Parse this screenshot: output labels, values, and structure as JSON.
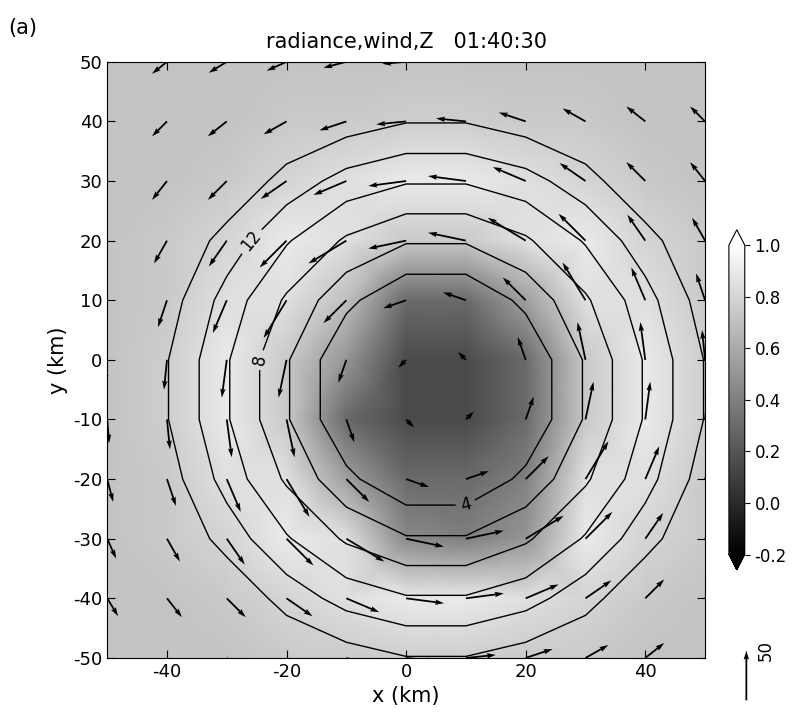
{
  "chart_data": {
    "type": "image_quiver_contour",
    "title": "radiance,wind,Z   01:40:30",
    "panel_label": "(a)",
    "x_label": "x (km)",
    "y_label": "y (km)",
    "x": [
      -50,
      -40,
      -30,
      -20,
      -10,
      0,
      10,
      20,
      30,
      40,
      50
    ],
    "y": [
      -50,
      -40,
      -30,
      -20,
      -10,
      0,
      10,
      20,
      30,
      40,
      50
    ],
    "xlim": [
      -50,
      50
    ],
    "ylim": [
      -50,
      50
    ],
    "xticks": [
      -40,
      -20,
      0,
      20,
      40
    ],
    "yticks": [
      -50,
      -40,
      -30,
      -20,
      -10,
      0,
      10,
      20,
      30,
      40,
      50
    ],
    "radiance": [
      [
        0.72,
        0.72,
        0.72,
        0.75,
        0.75,
        0.77,
        0.77,
        0.75,
        0.75,
        0.72,
        0.72
      ],
      [
        0.72,
        0.72,
        0.75,
        0.8,
        0.85,
        0.9,
        0.9,
        0.85,
        0.8,
        0.75,
        0.72
      ],
      [
        0.72,
        0.75,
        0.8,
        0.9,
        0.85,
        0.45,
        0.4,
        0.5,
        0.9,
        0.8,
        0.75
      ],
      [
        0.72,
        0.75,
        0.85,
        0.85,
        0.55,
        0.3,
        0.3,
        0.4,
        0.85,
        0.85,
        0.75
      ],
      [
        0.72,
        0.77,
        0.9,
        0.75,
        0.3,
        0.15,
        0.15,
        0.3,
        0.75,
        0.9,
        0.77
      ],
      [
        0.72,
        0.77,
        0.9,
        0.75,
        0.5,
        0.15,
        0.15,
        0.3,
        0.75,
        0.9,
        0.77
      ],
      [
        0.72,
        0.75,
        0.85,
        0.85,
        0.7,
        0.3,
        0.3,
        0.55,
        0.85,
        0.85,
        0.75
      ],
      [
        0.72,
        0.75,
        0.8,
        0.9,
        0.85,
        0.75,
        0.75,
        0.85,
        0.9,
        0.8,
        0.75
      ],
      [
        0.72,
        0.72,
        0.75,
        0.8,
        0.85,
        0.9,
        0.9,
        0.85,
        0.8,
        0.75,
        0.72
      ],
      [
        0.72,
        0.72,
        0.72,
        0.75,
        0.75,
        0.77,
        0.77,
        0.75,
        0.75,
        0.72,
        0.72
      ],
      [
        0.72,
        0.72,
        0.72,
        0.72,
        0.72,
        0.72,
        0.72,
        0.72,
        0.72,
        0.72,
        0.72
      ]
    ],
    "colorbar": {
      "range": [
        -0.2,
        1.0
      ],
      "ticks": [
        {
          "value": -0.2,
          "label": "-0.2"
        },
        {
          "value": 0.0,
          "label": "0.0"
        },
        {
          "value": 0.2,
          "label": "0.2"
        },
        {
          "value": 0.4,
          "label": "0.4"
        },
        {
          "value": 0.6,
          "label": "0.6"
        },
        {
          "value": 0.8,
          "label": "0.8"
        },
        {
          "value": 1.0,
          "label": "1.0"
        }
      ]
    },
    "wind_u": [
      [
        12,
        15,
        19,
        23,
        27,
        30,
        30,
        27,
        23,
        19,
        15
      ],
      [
        11,
        15,
        19,
        26,
        33,
        38,
        38,
        33,
        26,
        19,
        15
      ],
      [
        9,
        13,
        18,
        27,
        38,
        38,
        38,
        38,
        27,
        18,
        13
      ],
      [
        6,
        9,
        14,
        23,
        23,
        23,
        23,
        23,
        23,
        14,
        9
      ],
      [
        2,
        3,
        5,
        8,
        8,
        8,
        8,
        8,
        8,
        5,
        3
      ],
      [
        -2,
        -3,
        -5,
        -8,
        -8,
        -8,
        -8,
        -8,
        -8,
        -5,
        -3
      ],
      [
        -6,
        -9,
        -14,
        -23,
        -23,
        -23,
        -23,
        -23,
        -23,
        -14,
        -9
      ],
      [
        -9,
        -13,
        -18,
        -27,
        -38,
        -38,
        -38,
        -38,
        -27,
        -18,
        -13
      ],
      [
        -11,
        -15,
        -19,
        -26,
        -33,
        -38,
        -38,
        -33,
        -26,
        -19,
        -15
      ],
      [
        -12,
        -15,
        -19,
        -23,
        -27,
        -30,
        -30,
        -27,
        -23,
        -19,
        -15
      ],
      [
        -12,
        -15,
        -18,
        -20,
        -23,
        -24,
        -24,
        -23,
        -20,
        -18,
        -15
      ]
    ],
    "wind_v": [
      [
        -15,
        -15,
        -15,
        -13,
        -9,
        -3,
        3,
        9,
        13,
        15,
        15
      ],
      [
        -18,
        -19,
        -19,
        -18,
        -14,
        -5,
        5,
        14,
        18,
        19,
        19
      ],
      [
        -20,
        -23,
        -26,
        -27,
        -23,
        -8,
        8,
        23,
        27,
        26,
        23
      ],
      [
        -23,
        -27,
        -33,
        -38,
        -23,
        -8,
        8,
        23,
        38,
        33,
        27
      ],
      [
        -24,
        -30,
        -38,
        -38,
        -23,
        -8,
        8,
        23,
        38,
        38,
        30
      ],
      [
        -24,
        -30,
        -38,
        -38,
        -23,
        -8,
        8,
        23,
        38,
        38,
        30
      ],
      [
        -23,
        -27,
        -33,
        -38,
        -23,
        -8,
        8,
        23,
        38,
        33,
        27
      ],
      [
        -20,
        -23,
        -26,
        -27,
        -23,
        -8,
        8,
        23,
        27,
        26,
        23
      ],
      [
        -18,
        -19,
        -19,
        -18,
        -14,
        -5,
        5,
        14,
        18,
        19,
        19
      ],
      [
        -15,
        -15,
        -15,
        -13,
        -9,
        -3,
        3,
        9,
        13,
        15,
        15
      ],
      [
        -12,
        -12,
        -11,
        -9,
        -6,
        -2,
        2,
        6,
        9,
        11,
        12
      ]
    ],
    "wind_key": 50,
    "Z_levels": [
      4,
      6,
      8,
      10,
      12,
      14
    ],
    "Z_labeled_levels": [
      4,
      8,
      12
    ],
    "Z": [
      [
        16,
        16,
        16,
        16,
        15,
        14.1,
        14.1,
        15,
        16,
        16,
        16
      ],
      [
        16,
        16,
        15.8,
        13.2,
        11.2,
        10.2,
        10.2,
        11.2,
        13.2,
        15.8,
        16
      ],
      [
        16,
        16,
        13.2,
        10.2,
        7.7,
        6.2,
        6.2,
        7.7,
        10.2,
        13.2,
        16
      ],
      [
        16,
        15,
        11.2,
        7.7,
        4.5,
        2.3,
        2.3,
        4.5,
        7.7,
        11.2,
        15
      ],
      [
        16,
        14.1,
        10.2,
        6.2,
        2.3,
        2,
        2,
        2.3,
        6.2,
        10.2,
        14.1
      ],
      [
        16,
        14.1,
        10.2,
        6.2,
        2.3,
        2,
        2,
        2.3,
        6.2,
        10.2,
        14.1
      ],
      [
        16,
        15,
        11.2,
        7.7,
        4.5,
        2.3,
        2.3,
        4.5,
        7.7,
        11.2,
        15
      ],
      [
        16,
        16,
        13.2,
        10.2,
        7.7,
        6.2,
        6.2,
        7.7,
        10.2,
        13.2,
        16
      ],
      [
        16,
        16,
        15.8,
        13.2,
        11.2,
        10.2,
        10.2,
        11.2,
        13.2,
        15.8,
        16
      ],
      [
        16,
        16,
        16,
        16,
        15,
        14.1,
        14.1,
        15,
        16,
        16,
        16
      ],
      [
        16,
        16,
        16,
        16,
        16,
        16,
        16,
        16,
        16,
        16,
        16
      ]
    ]
  }
}
